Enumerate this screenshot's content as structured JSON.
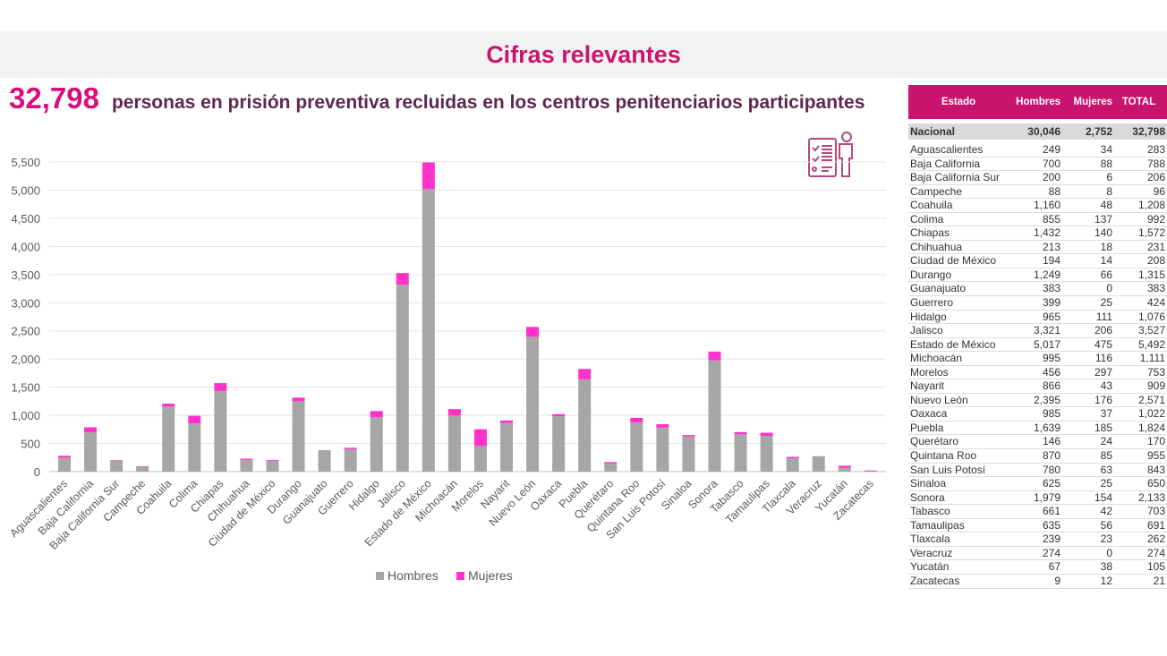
{
  "title": "Cifras relevantes",
  "headline": {
    "number": "32,798",
    "text": "personas en prisión preventiva recluidas en los centros penitenciarios participantes"
  },
  "icon": "checklist-person-icon",
  "colors": {
    "accent": "#d6117e",
    "hombres": "#a6a6a6",
    "mujeres": "#ff33cc",
    "header": "#c8146e"
  },
  "table": {
    "headers": [
      "Estado",
      "Hombres",
      "Mujeres",
      "TOTAL"
    ],
    "national": [
      "Nacional",
      "30,046",
      "2,752",
      "32,798"
    ],
    "rows": [
      [
        "Aguascalientes",
        "249",
        "34",
        "283"
      ],
      [
        "Baja California",
        "700",
        "88",
        "788"
      ],
      [
        "Baja California Sur",
        "200",
        "6",
        "206"
      ],
      [
        "Campeche",
        "88",
        "8",
        "96"
      ],
      [
        "Coahuila",
        "1,160",
        "48",
        "1,208"
      ],
      [
        "Colima",
        "855",
        "137",
        "992"
      ],
      [
        "Chiapas",
        "1,432",
        "140",
        "1,572"
      ],
      [
        "Chihuahua",
        "213",
        "18",
        "231"
      ],
      [
        "Ciudad de México",
        "194",
        "14",
        "208"
      ],
      [
        "Durango",
        "1,249",
        "66",
        "1,315"
      ],
      [
        "Guanajuato",
        "383",
        "0",
        "383"
      ],
      [
        "Guerrero",
        "399",
        "25",
        "424"
      ],
      [
        "Hidalgo",
        "965",
        "111",
        "1,076"
      ],
      [
        "Jalisco",
        "3,321",
        "206",
        "3,527"
      ],
      [
        "Estado de México",
        "5,017",
        "475",
        "5,492"
      ],
      [
        "Michoacán",
        "995",
        "116",
        "1,111"
      ],
      [
        "Morelos",
        "456",
        "297",
        "753"
      ],
      [
        "Nayarit",
        "866",
        "43",
        "909"
      ],
      [
        "Nuevo León",
        "2,395",
        "176",
        "2,571"
      ],
      [
        "Oaxaca",
        "985",
        "37",
        "1,022"
      ],
      [
        "Puebla",
        "1,639",
        "185",
        "1,824"
      ],
      [
        "Querétaro",
        "146",
        "24",
        "170"
      ],
      [
        "Quintana Roo",
        "870",
        "85",
        "955"
      ],
      [
        "San Luis Potosí",
        "780",
        "63",
        "843"
      ],
      [
        "Sinaloa",
        "625",
        "25",
        "650"
      ],
      [
        "Sonora",
        "1,979",
        "154",
        "2,133"
      ],
      [
        "Tabasco",
        "661",
        "42",
        "703"
      ],
      [
        "Tamaulipas",
        "635",
        "56",
        "691"
      ],
      [
        "Tlaxcala",
        "239",
        "23",
        "262"
      ],
      [
        "Veracruz",
        "274",
        "0",
        "274"
      ],
      [
        "Yucatán",
        "67",
        "38",
        "105"
      ],
      [
        "Zacatecas",
        "9",
        "12",
        "21"
      ]
    ]
  },
  "chart_data": {
    "type": "bar",
    "stacked": true,
    "categories": [
      "Aguascalientes",
      "Baja California",
      "Baja California Sur",
      "Campeche",
      "Coahuila",
      "Colima",
      "Chiapas",
      "Chihuahua",
      "Ciudad de México",
      "Durango",
      "Guanajuato",
      "Guerrero",
      "Hidalgo",
      "Jalisco",
      "Estado de México",
      "Michoacán",
      "Morelos",
      "Nayarit",
      "Nuevo León",
      "Oaxaca",
      "Puebla",
      "Querétaro",
      "Quintana Roo",
      "San Luis Potosí",
      "Sinaloa",
      "Sonora",
      "Tabasco",
      "Tamaulipas",
      "Tlaxcala",
      "Veracruz",
      "Yucatán",
      "Zacatecas"
    ],
    "series": [
      {
        "name": "Hombres",
        "color": "#a6a6a6",
        "values": [
          249,
          700,
          200,
          88,
          1160,
          855,
          1432,
          213,
          194,
          1249,
          383,
          399,
          965,
          3321,
          5017,
          995,
          456,
          866,
          2395,
          985,
          1639,
          146,
          870,
          780,
          625,
          1979,
          661,
          635,
          239,
          274,
          67,
          9
        ]
      },
      {
        "name": "Mujeres",
        "color": "#ff33cc",
        "values": [
          34,
          88,
          6,
          8,
          48,
          137,
          140,
          18,
          14,
          66,
          0,
          25,
          111,
          206,
          475,
          116,
          297,
          43,
          176,
          37,
          185,
          24,
          85,
          63,
          25,
          154,
          42,
          56,
          23,
          0,
          38,
          12
        ]
      }
    ],
    "ylim": [
      0,
      5500
    ],
    "yticks": [
      "0",
      "500",
      "1,000",
      "1,500",
      "2,000",
      "2,500",
      "3,000",
      "3,500",
      "4,000",
      "4,500",
      "5,000",
      "5,500"
    ],
    "grid": true,
    "legend": "bottom"
  }
}
